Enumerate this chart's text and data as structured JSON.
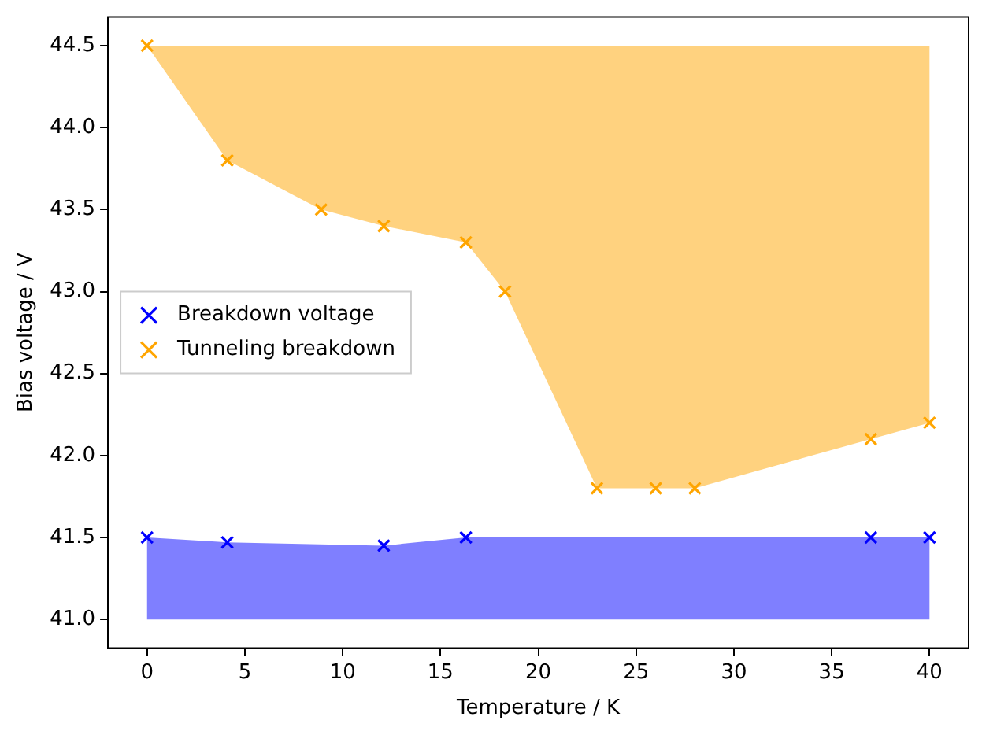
{
  "chart_data": {
    "type": "scatter",
    "xlabel": "Temperature / K",
    "ylabel": "Bias voltage / V",
    "xlim": [
      -2,
      42
    ],
    "xticks": [
      0,
      5,
      10,
      15,
      20,
      25,
      30,
      35,
      40
    ],
    "ylim": [
      40.825,
      44.675
    ],
    "yticks": [
      {
        "value": 41.0,
        "label": "41.0"
      },
      {
        "value": 41.5,
        "label": "41.5"
      },
      {
        "value": 42.0,
        "label": "42.0"
      },
      {
        "value": 42.5,
        "label": "42.5"
      },
      {
        "value": 43.0,
        "label": "43.0"
      },
      {
        "value": 43.5,
        "label": "43.5"
      },
      {
        "value": 44.0,
        "label": "44.0"
      },
      {
        "value": 44.5,
        "label": "44.5"
      }
    ],
    "grid": false,
    "legend": "center left",
    "marker": "cross",
    "series": [
      {
        "name": "Breakdown voltage",
        "color": "#0000ff",
        "x": [
          0,
          4.1,
          12.1,
          16.3,
          37.0,
          40
        ],
        "values": [
          41.5,
          41.47,
          41.45,
          41.5,
          41.5,
          41.5
        ],
        "lower": [
          41.0,
          41.0,
          41.0,
          41.0,
          41.0,
          41.0
        ],
        "upper": [
          41.5,
          41.47,
          41.45,
          41.5,
          41.5,
          41.5
        ]
      },
      {
        "name": "Tunneling breakdown",
        "color": "#ffa500",
        "x": [
          0,
          4.1,
          8.9,
          12.1,
          16.3,
          18.3,
          23.0,
          26.0,
          28.0,
          37.0,
          40
        ],
        "values": [
          44.5,
          43.8,
          43.5,
          43.4,
          43.3,
          43.0,
          41.8,
          41.8,
          41.8,
          42.1,
          42.2
        ],
        "lower": [
          44.5,
          43.8,
          43.5,
          43.4,
          43.3,
          43.0,
          41.8,
          41.8,
          41.8,
          42.1,
          42.2
        ],
        "upper": [
          44.5,
          44.5,
          44.5,
          44.5,
          44.5,
          44.5,
          44.5,
          44.5,
          44.5,
          44.5,
          44.5
        ]
      }
    ]
  }
}
